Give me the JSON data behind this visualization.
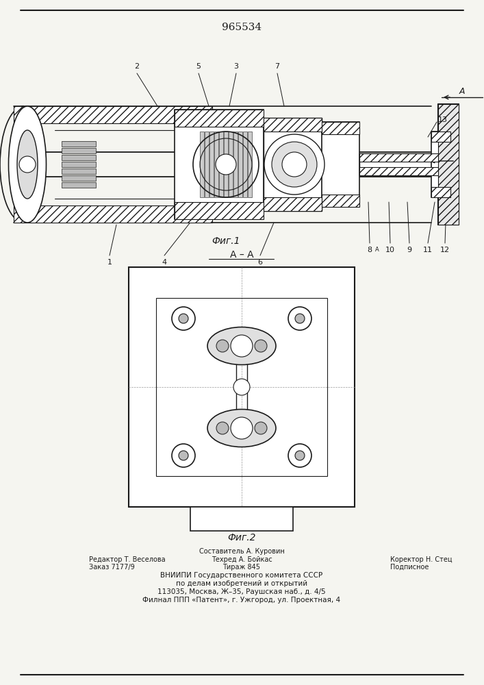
{
  "patent_number": "965534",
  "fig1_label": "Фиг.1",
  "fig2_label": "Фиг.2",
  "section_label": "А – А",
  "bg_color": "#f5f5f0",
  "line_color": "#1a1a1a",
  "footer_lines": [
    "Составитель А. Куровин",
    "Редактор Т. Веселова          Техред А. Бойкас          Коректор Н. Стец",
    "Заказ 7177/9                       Тираж 845                    Подписное",
    "ВНИИПИ Государственного комитета СССР",
    "по делам изобретений и открытий",
    "113035, Москва, Ж–35, Раушская наб., д. 4/5",
    "Филнал ППП «Патент», г. Ужгород, ул. Проектная, 4"
  ]
}
